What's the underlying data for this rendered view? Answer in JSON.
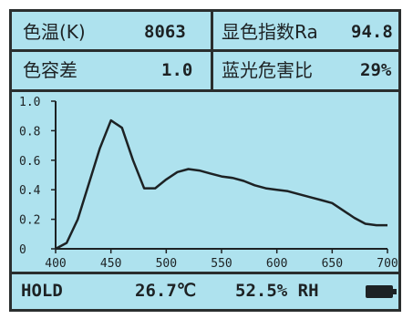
{
  "readings": {
    "cct_label": "色温(K)",
    "cct_value": "8063",
    "cri_label": "显色指数Ra",
    "cri_value": "94.8",
    "duv_label": "色容差",
    "duv_value": "1.0",
    "blue_hazard_label": "蓝光危害比",
    "blue_hazard_value": "29%"
  },
  "status": {
    "mode": "HOLD",
    "temperature": "26.7℃",
    "humidity": "52.5% RH",
    "battery_icon": "battery-full-icon"
  },
  "colors": {
    "screen_bg": "#aee2ee",
    "ink": "#1d2224"
  },
  "chart_data": {
    "type": "line",
    "title": "",
    "xlabel": "",
    "ylabel": "",
    "xlim": [
      400,
      700
    ],
    "ylim": [
      0,
      1.0
    ],
    "x_ticks": [
      "400",
      "450",
      "500",
      "550",
      "600",
      "650",
      "700"
    ],
    "y_ticks": [
      "0",
      "0.2",
      "0.4",
      "0.6",
      "0.8",
      "1.0"
    ],
    "grid": false,
    "series": [
      {
        "x": [
          400,
          410,
          420,
          430,
          440,
          450,
          460,
          470,
          480,
          490,
          500,
          510,
          520,
          530,
          540,
          550,
          560,
          570,
          580,
          590,
          600,
          610,
          620,
          630,
          640,
          650,
          660,
          670,
          680,
          690,
          700
        ],
        "values": [
          0.0,
          0.04,
          0.2,
          0.44,
          0.68,
          0.87,
          0.82,
          0.6,
          0.41,
          0.41,
          0.47,
          0.52,
          0.54,
          0.53,
          0.51,
          0.49,
          0.48,
          0.46,
          0.43,
          0.41,
          0.4,
          0.39,
          0.37,
          0.35,
          0.33,
          0.31,
          0.26,
          0.21,
          0.17,
          0.16,
          0.16
        ]
      }
    ]
  }
}
